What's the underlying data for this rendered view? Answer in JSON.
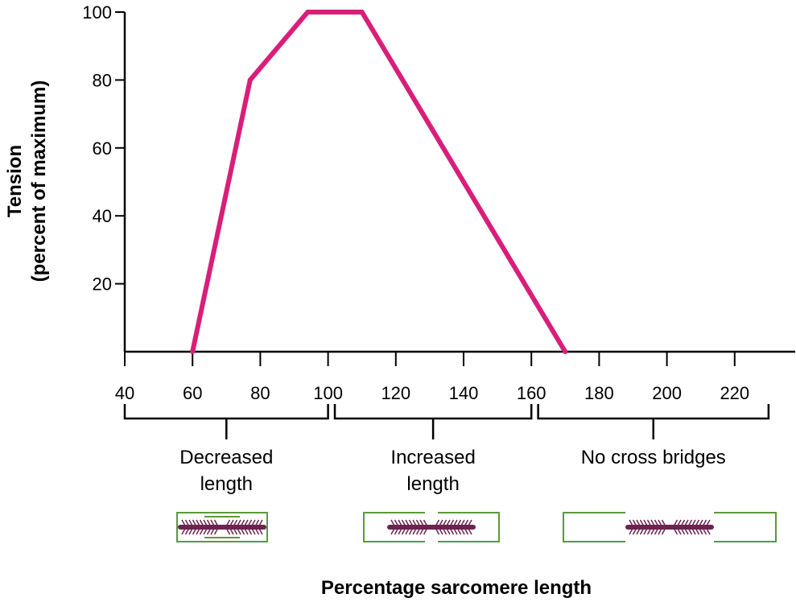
{
  "chart_data": {
    "type": "line",
    "title": "",
    "xlabel": "Percentage sarcomere length",
    "ylabel_line1": "Tension",
    "ylabel_line2": "(percent of maximum)",
    "xlim": [
      40,
      230
    ],
    "ylim": [
      0,
      100
    ],
    "x_ticks": [
      40,
      60,
      80,
      100,
      120,
      140,
      160,
      180,
      200,
      220
    ],
    "y_ticks": [
      20,
      40,
      60,
      80,
      100
    ],
    "series": [
      {
        "color": "#d91e7a",
        "x": [
          60,
          77,
          94,
          110,
          170
        ],
        "y": [
          0,
          80,
          100,
          100,
          0
        ]
      }
    ],
    "groups": [
      {
        "range": [
          40,
          100
        ],
        "lines": [
          "Decreased",
          "length"
        ],
        "sarcomere": "decreased"
      },
      {
        "range": [
          102,
          160
        ],
        "lines": [
          "Increased",
          "length"
        ],
        "sarcomere": "increased"
      },
      {
        "range": [
          162,
          230
        ],
        "lines": [
          "No cross bridges"
        ],
        "sarcomere": "none"
      }
    ],
    "sarcomere_colors": {
      "z_line": "#5a9a3a",
      "myosin": "#6b2450"
    }
  }
}
